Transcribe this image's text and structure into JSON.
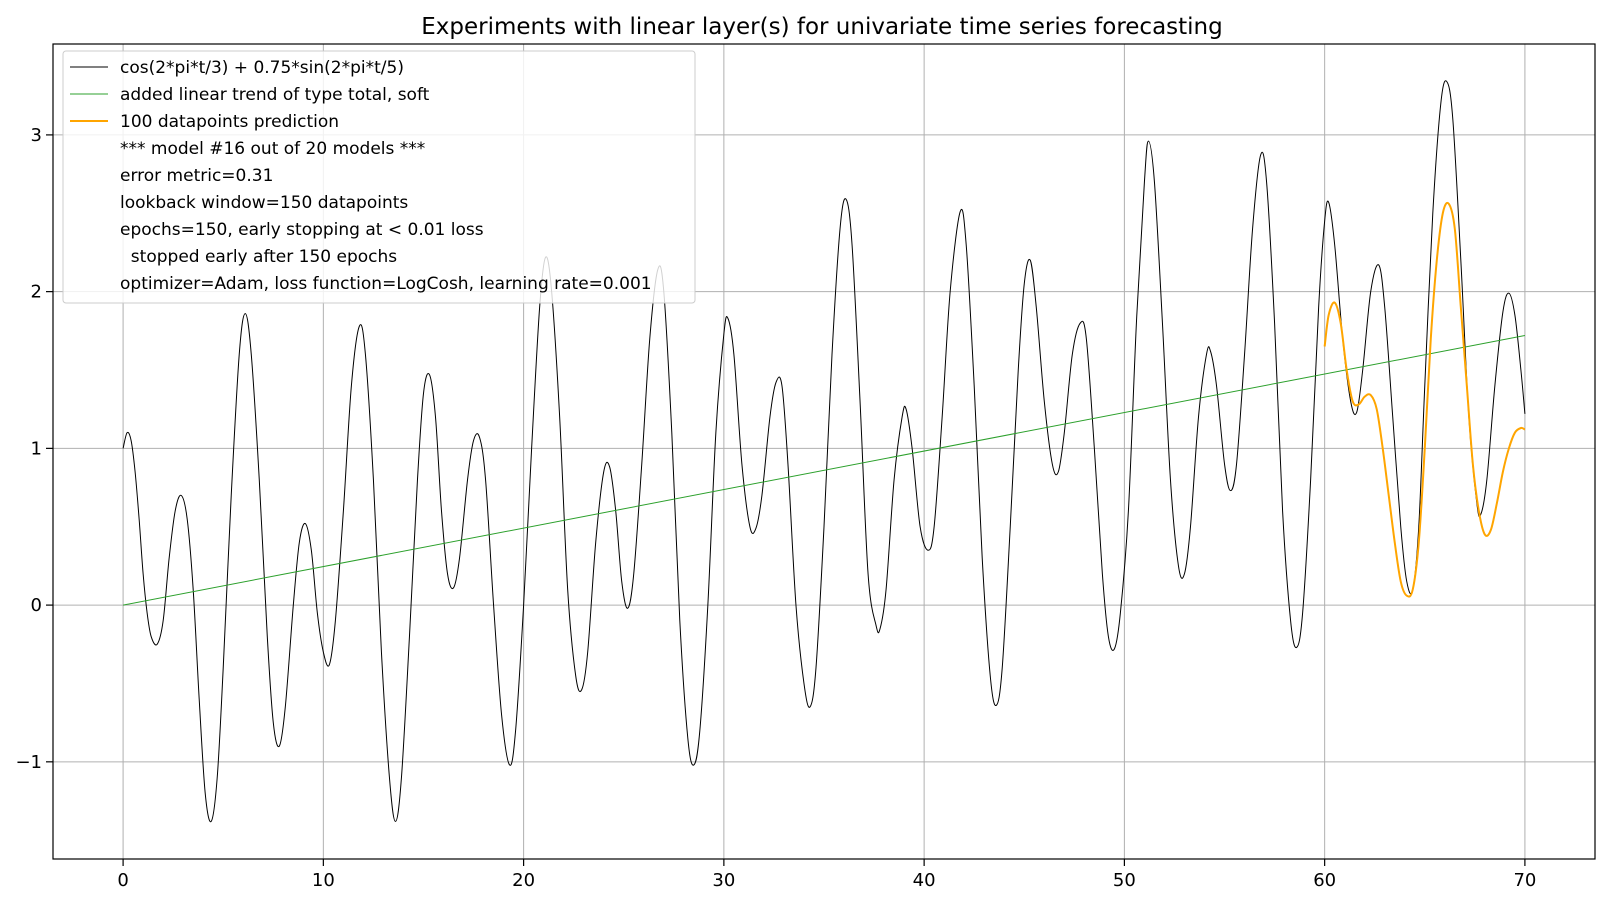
{
  "chart_data": {
    "type": "line",
    "title": "Experiments with linear layer(s) for univariate time series forecasting",
    "xlabel": "",
    "ylabel": "",
    "xlim": [
      -3.5,
      73.5
    ],
    "ylim": [
      -1.62,
      3.58
    ],
    "grid": true,
    "legend_position": "top-left",
    "x_ticks": [
      0,
      10,
      20,
      30,
      40,
      50,
      60,
      70
    ],
    "x_tick_labels": [
      "0",
      "10",
      "20",
      "30",
      "40",
      "50",
      "60",
      "70"
    ],
    "y_ticks": [
      -1,
      0,
      1,
      2,
      3
    ],
    "y_tick_labels": [
      "−1",
      "0",
      "1",
      "2",
      "3"
    ],
    "series": [
      {
        "name": "cos(2*pi*t/3) + 0.75*sin(2*pi*t/5)",
        "color": "#000000",
        "x_start": 0,
        "x_end": 70,
        "points": [
          [
            0.0,
            1.0
          ],
          [
            0.2,
            1.1
          ],
          [
            0.4,
            1.05
          ],
          [
            0.6,
            0.85
          ],
          [
            0.8,
            0.55
          ],
          [
            1.0,
            0.2
          ],
          [
            1.2,
            -0.05
          ],
          [
            1.4,
            -0.2
          ],
          [
            1.7,
            -0.25
          ],
          [
            2.0,
            -0.1
          ],
          [
            2.3,
            0.3
          ],
          [
            2.6,
            0.6
          ],
          [
            2.9,
            0.7
          ],
          [
            3.2,
            0.55
          ],
          [
            3.5,
            0.1
          ],
          [
            3.8,
            -0.6
          ],
          [
            4.1,
            -1.2
          ],
          [
            4.4,
            -1.38
          ],
          [
            4.7,
            -1.1
          ],
          [
            5.0,
            -0.4
          ],
          [
            5.4,
            0.7
          ],
          [
            5.8,
            1.6
          ],
          [
            6.1,
            1.86
          ],
          [
            6.4,
            1.6
          ],
          [
            6.8,
            0.8
          ],
          [
            7.2,
            -0.2
          ],
          [
            7.5,
            -0.75
          ],
          [
            7.8,
            -0.9
          ],
          [
            8.1,
            -0.65
          ],
          [
            8.5,
            0.0
          ],
          [
            8.8,
            0.4
          ],
          [
            9.1,
            0.52
          ],
          [
            9.4,
            0.35
          ],
          [
            9.7,
            -0.05
          ],
          [
            10.0,
            -0.3
          ],
          [
            10.3,
            -0.38
          ],
          [
            10.6,
            -0.1
          ],
          [
            11.0,
            0.6
          ],
          [
            11.4,
            1.4
          ],
          [
            11.8,
            1.78
          ],
          [
            12.1,
            1.6
          ],
          [
            12.5,
            0.8
          ],
          [
            12.9,
            -0.3
          ],
          [
            13.3,
            -1.1
          ],
          [
            13.6,
            -1.38
          ],
          [
            13.9,
            -1.1
          ],
          [
            14.3,
            -0.2
          ],
          [
            14.7,
            0.8
          ],
          [
            15.0,
            1.35
          ],
          [
            15.3,
            1.47
          ],
          [
            15.6,
            1.2
          ],
          [
            15.9,
            0.6
          ],
          [
            16.2,
            0.2
          ],
          [
            16.5,
            0.11
          ],
          [
            16.8,
            0.3
          ],
          [
            17.2,
            0.8
          ],
          [
            17.5,
            1.05
          ],
          [
            17.8,
            1.07
          ],
          [
            18.1,
            0.8
          ],
          [
            18.5,
            0.0
          ],
          [
            18.9,
            -0.7
          ],
          [
            19.3,
            -1.02
          ],
          [
            19.6,
            -0.8
          ],
          [
            20.0,
            0.0
          ],
          [
            20.4,
            1.0
          ],
          [
            20.8,
            1.9
          ],
          [
            21.1,
            2.22
          ],
          [
            21.4,
            2.0
          ],
          [
            21.8,
            1.2
          ],
          [
            22.2,
            0.1
          ],
          [
            22.6,
            -0.45
          ],
          [
            22.9,
            -0.54
          ],
          [
            23.2,
            -0.3
          ],
          [
            23.6,
            0.4
          ],
          [
            24.0,
            0.85
          ],
          [
            24.3,
            0.88
          ],
          [
            24.6,
            0.6
          ],
          [
            24.9,
            0.15
          ],
          [
            25.2,
            -0.02
          ],
          [
            25.5,
            0.2
          ],
          [
            25.9,
            0.9
          ],
          [
            26.3,
            1.7
          ],
          [
            26.7,
            2.14
          ],
          [
            27.0,
            2.0
          ],
          [
            27.4,
            1.1
          ],
          [
            27.8,
            -0.1
          ],
          [
            28.2,
            -0.85
          ],
          [
            28.5,
            -1.02
          ],
          [
            28.8,
            -0.8
          ],
          [
            29.2,
            0.0
          ],
          [
            29.6,
            1.1
          ],
          [
            30.0,
            1.73
          ],
          [
            30.2,
            1.83
          ],
          [
            30.5,
            1.6
          ],
          [
            30.9,
            0.9
          ],
          [
            31.3,
            0.5
          ],
          [
            31.6,
            0.49
          ],
          [
            31.9,
            0.7
          ],
          [
            32.3,
            1.2
          ],
          [
            32.6,
            1.42
          ],
          [
            32.9,
            1.4
          ],
          [
            33.2,
            0.9
          ],
          [
            33.6,
            0.0
          ],
          [
            34.0,
            -0.5
          ],
          [
            34.3,
            -0.65
          ],
          [
            34.6,
            -0.4
          ],
          [
            35.0,
            0.5
          ],
          [
            35.4,
            1.6
          ],
          [
            35.8,
            2.4
          ],
          [
            36.1,
            2.59
          ],
          [
            36.4,
            2.3
          ],
          [
            36.8,
            1.3
          ],
          [
            37.2,
            0.2
          ],
          [
            37.6,
            -0.13
          ],
          [
            37.8,
            -0.15
          ],
          [
            38.1,
            0.1
          ],
          [
            38.5,
            0.8
          ],
          [
            38.9,
            1.2
          ],
          [
            39.1,
            1.25
          ],
          [
            39.4,
            1.0
          ],
          [
            39.8,
            0.5
          ],
          [
            40.2,
            0.35
          ],
          [
            40.5,
            0.5
          ],
          [
            40.9,
            1.2
          ],
          [
            41.3,
            2.0
          ],
          [
            41.8,
            2.51
          ],
          [
            42.1,
            2.3
          ],
          [
            42.5,
            1.4
          ],
          [
            42.9,
            0.3
          ],
          [
            43.3,
            -0.45
          ],
          [
            43.6,
            -0.64
          ],
          [
            43.9,
            -0.4
          ],
          [
            44.3,
            0.5
          ],
          [
            44.7,
            1.5
          ],
          [
            45.0,
            2.05
          ],
          [
            45.3,
            2.2
          ],
          [
            45.6,
            1.9
          ],
          [
            46.0,
            1.3
          ],
          [
            46.4,
            0.9
          ],
          [
            46.7,
            0.85
          ],
          [
            47.0,
            1.1
          ],
          [
            47.4,
            1.6
          ],
          [
            47.8,
            1.8
          ],
          [
            48.1,
            1.7
          ],
          [
            48.5,
            1.0
          ],
          [
            48.9,
            0.2
          ],
          [
            49.2,
            -0.2
          ],
          [
            49.5,
            -0.28
          ],
          [
            49.8,
            -0.05
          ],
          [
            50.2,
            0.6
          ],
          [
            50.6,
            1.8
          ],
          [
            51.0,
            2.7
          ],
          [
            51.2,
            2.96
          ],
          [
            51.5,
            2.7
          ],
          [
            51.9,
            1.8
          ],
          [
            52.3,
            0.8
          ],
          [
            52.7,
            0.25
          ],
          [
            53.0,
            0.2
          ],
          [
            53.3,
            0.5
          ],
          [
            53.7,
            1.2
          ],
          [
            54.1,
            1.6
          ],
          [
            54.3,
            1.62
          ],
          [
            54.6,
            1.4
          ],
          [
            55.0,
            0.9
          ],
          [
            55.3,
            0.73
          ],
          [
            55.6,
            0.9
          ],
          [
            56.0,
            1.6
          ],
          [
            56.4,
            2.4
          ],
          [
            56.8,
            2.87
          ],
          [
            57.1,
            2.7
          ],
          [
            57.5,
            1.8
          ],
          [
            57.9,
            0.6
          ],
          [
            58.3,
            -0.1
          ],
          [
            58.6,
            -0.27
          ],
          [
            58.9,
            -0.05
          ],
          [
            59.3,
            0.8
          ],
          [
            59.7,
            1.9
          ],
          [
            60.0,
            2.45
          ],
          [
            60.2,
            2.57
          ],
          [
            60.5,
            2.3
          ],
          [
            60.9,
            1.7
          ],
          [
            61.3,
            1.3
          ],
          [
            61.6,
            1.23
          ],
          [
            61.9,
            1.5
          ],
          [
            62.3,
            2.0
          ],
          [
            62.7,
            2.17
          ],
          [
            63.0,
            1.9
          ],
          [
            63.4,
            1.2
          ],
          [
            63.8,
            0.5
          ],
          [
            64.1,
            0.15
          ],
          [
            64.4,
            0.1
          ],
          [
            64.7,
            0.5
          ],
          [
            65.0,
            1.4
          ],
          [
            65.4,
            2.5
          ],
          [
            65.8,
            3.2
          ],
          [
            66.1,
            3.34
          ],
          [
            66.4,
            3.1
          ],
          [
            66.8,
            2.2
          ],
          [
            67.2,
            1.2
          ],
          [
            67.6,
            0.65
          ],
          [
            67.8,
            0.58
          ],
          [
            68.1,
            0.8
          ],
          [
            68.5,
            1.4
          ],
          [
            68.9,
            1.87
          ],
          [
            69.2,
            1.99
          ],
          [
            69.5,
            1.85
          ],
          [
            69.8,
            1.5
          ],
          [
            70.0,
            1.22
          ]
        ]
      },
      {
        "name": "added linear trend of type total, soft",
        "color": "#2ca02c",
        "points": [
          [
            0.0,
            0.0
          ],
          [
            70.0,
            1.72
          ]
        ]
      },
      {
        "name": "100 datapoints prediction",
        "color": "#ffa500",
        "points": [
          [
            60.0,
            1.65
          ],
          [
            60.2,
            1.85
          ],
          [
            60.5,
            1.93
          ],
          [
            60.8,
            1.8
          ],
          [
            61.1,
            1.5
          ],
          [
            61.4,
            1.3
          ],
          [
            61.7,
            1.28
          ],
          [
            62.0,
            1.33
          ],
          [
            62.3,
            1.34
          ],
          [
            62.6,
            1.25
          ],
          [
            62.9,
            1.0
          ],
          [
            63.2,
            0.7
          ],
          [
            63.5,
            0.4
          ],
          [
            63.8,
            0.15
          ],
          [
            64.1,
            0.06
          ],
          [
            64.4,
            0.1
          ],
          [
            64.7,
            0.4
          ],
          [
            65.0,
            1.0
          ],
          [
            65.3,
            1.7
          ],
          [
            65.6,
            2.2
          ],
          [
            65.9,
            2.5
          ],
          [
            66.2,
            2.56
          ],
          [
            66.5,
            2.4
          ],
          [
            66.8,
            1.9
          ],
          [
            67.1,
            1.4
          ],
          [
            67.4,
            0.9
          ],
          [
            67.7,
            0.6
          ],
          [
            68.0,
            0.45
          ],
          [
            68.3,
            0.48
          ],
          [
            68.6,
            0.65
          ],
          [
            68.9,
            0.85
          ],
          [
            69.2,
            1.0
          ],
          [
            69.5,
            1.1
          ],
          [
            69.8,
            1.13
          ],
          [
            70.0,
            1.12
          ]
        ]
      }
    ],
    "legend_extra_lines": [
      "*** model #16 out of 20 models ***",
      "error metric=0.31",
      "lookback window=150 datapoints",
      "epochs=150, early stopping at < 0.01 loss",
      "  stopped early after 150 epochs",
      "optimizer=Adam, loss function=LogCosh, learning rate=0.001"
    ]
  }
}
